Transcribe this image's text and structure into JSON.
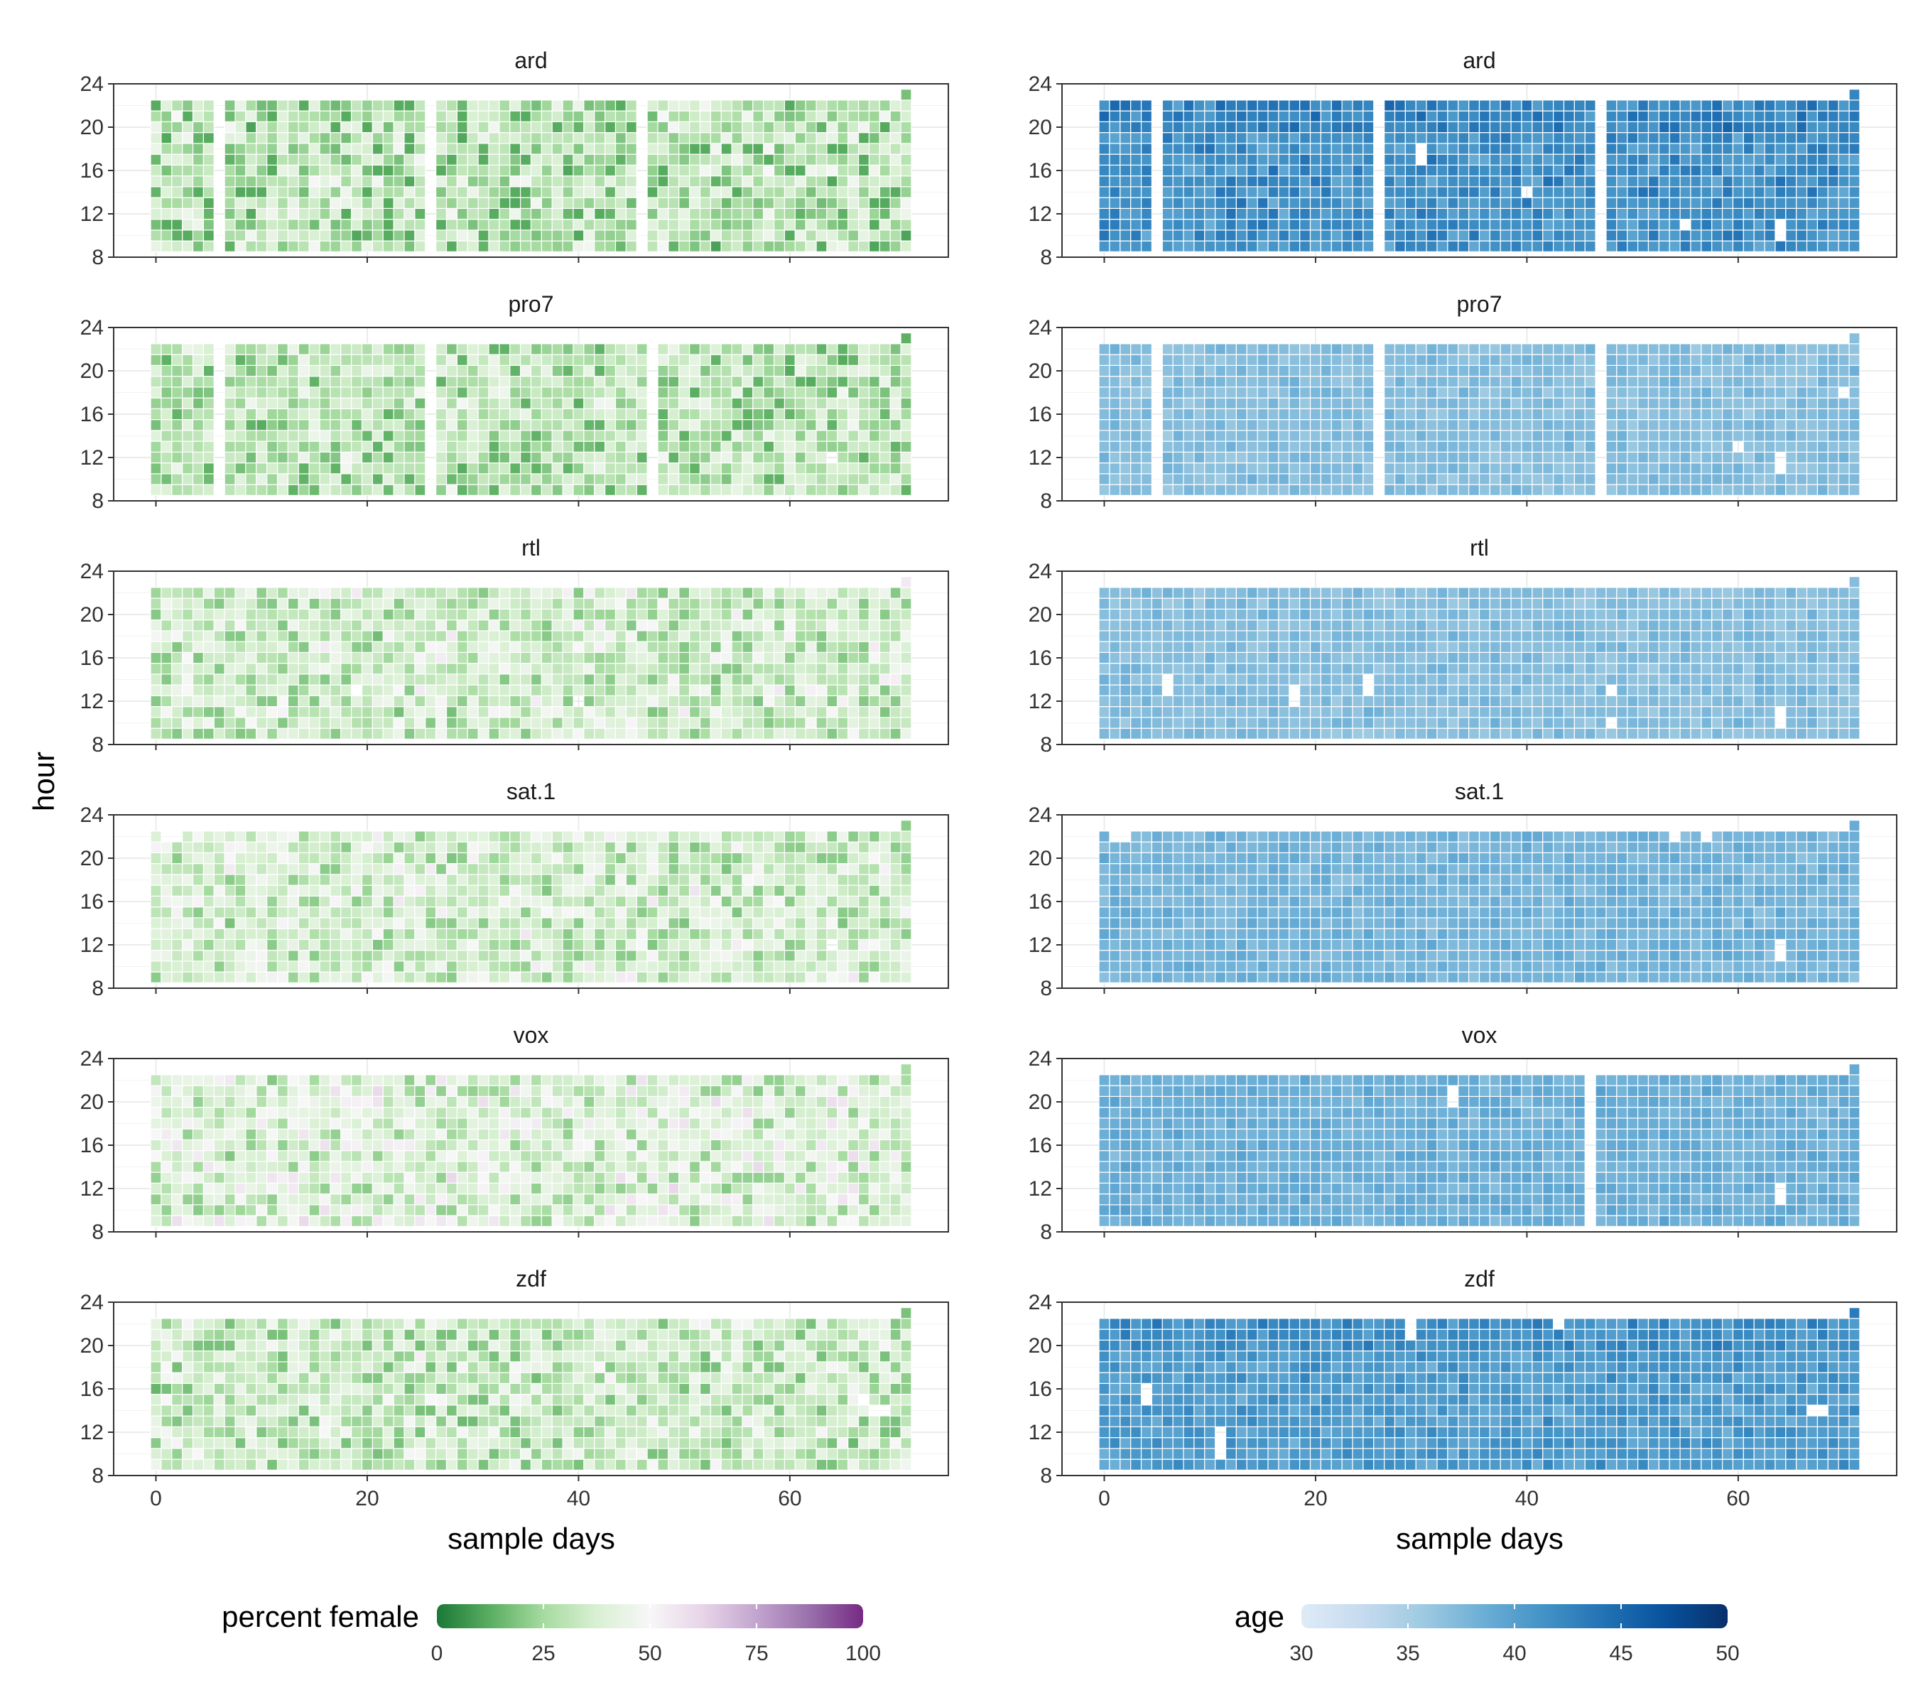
{
  "chart_data": {
    "type": "heatmap",
    "ylabel": "hour",
    "xlabel": "sample days",
    "x_ticks": [
      0,
      20,
      40,
      60
    ],
    "y_ticks": [
      8,
      12,
      16,
      20,
      24
    ],
    "xlim": [
      -4,
      75
    ],
    "ylim": [
      8,
      24
    ],
    "days": 72,
    "hours": [
      9,
      10,
      11,
      12,
      13,
      14,
      15,
      16,
      17,
      18,
      19,
      20,
      21,
      22
    ],
    "panels": [
      {
        "channel": "ard",
        "metric": "percent female",
        "mean": 30,
        "spread": 10,
        "missing_days": [
          6,
          26,
          46
        ],
        "missing_cells": []
      },
      {
        "channel": "pro7",
        "metric": "percent female",
        "mean": 30,
        "spread": 9,
        "missing_days": [
          6,
          26,
          47
        ],
        "missing_cells": [
          [
            64,
            12
          ]
        ]
      },
      {
        "channel": "rtl",
        "metric": "percent female",
        "mean": 36,
        "spread": 9,
        "missing_days": [],
        "missing_cells": [
          [
            19,
            13
          ],
          [
            40,
            12
          ]
        ]
      },
      {
        "channel": "sat.1",
        "metric": "percent female",
        "mean": 37,
        "spread": 9,
        "missing_days": [],
        "missing_cells": [
          [
            1,
            22
          ],
          [
            2,
            22
          ],
          [
            64,
            12
          ]
        ]
      },
      {
        "channel": "vox",
        "metric": "percent female",
        "mean": 40,
        "spread": 10,
        "missing_days": [],
        "missing_cells": []
      },
      {
        "channel": "zdf",
        "metric": "percent female",
        "mean": 34,
        "spread": 9,
        "missing_days": [],
        "missing_cells": [
          [
            68,
            14
          ],
          [
            69,
            14
          ],
          [
            67,
            15
          ]
        ]
      },
      {
        "channel": "ard",
        "metric": "age",
        "mean": 41.5,
        "spread": 1.5,
        "missing_days": [
          5,
          26,
          47
        ],
        "missing_cells": [
          [
            30,
            17
          ],
          [
            30,
            18
          ],
          [
            40,
            14
          ],
          [
            55,
            11
          ],
          [
            64,
            10
          ],
          [
            64,
            11
          ]
        ]
      },
      {
        "channel": "pro7",
        "metric": "age",
        "mean": 37,
        "spread": 0.8,
        "missing_days": [
          5,
          26,
          47
        ],
        "missing_cells": [
          [
            60,
            13
          ],
          [
            64,
            11
          ],
          [
            64,
            12
          ],
          [
            70,
            18
          ]
        ]
      },
      {
        "channel": "rtl",
        "metric": "age",
        "mean": 37,
        "spread": 0.8,
        "missing_days": [],
        "missing_cells": [
          [
            6,
            13
          ],
          [
            6,
            14
          ],
          [
            18,
            12
          ],
          [
            18,
            13
          ],
          [
            25,
            13
          ],
          [
            25,
            14
          ],
          [
            48,
            10
          ],
          [
            48,
            13
          ],
          [
            64,
            10
          ],
          [
            64,
            11
          ]
        ]
      },
      {
        "channel": "sat.1",
        "metric": "age",
        "mean": 38,
        "spread": 0.8,
        "missing_days": [],
        "missing_cells": [
          [
            1,
            22
          ],
          [
            2,
            22
          ],
          [
            54,
            22
          ],
          [
            57,
            22
          ],
          [
            64,
            11
          ],
          [
            64,
            12
          ]
        ]
      },
      {
        "channel": "vox",
        "metric": "age",
        "mean": 38.5,
        "spread": 0.8,
        "missing_days": [
          46
        ],
        "missing_cells": [
          [
            33,
            20
          ],
          [
            33,
            21
          ],
          [
            64,
            11
          ],
          [
            64,
            12
          ]
        ]
      },
      {
        "channel": "zdf",
        "metric": "age",
        "mean": 40.5,
        "spread": 1.2,
        "missing_days": [],
        "missing_cells": [
          [
            4,
            15
          ],
          [
            4,
            16
          ],
          [
            11,
            10
          ],
          [
            11,
            11
          ],
          [
            11,
            12
          ],
          [
            29,
            21
          ],
          [
            29,
            22
          ],
          [
            43,
            22
          ],
          [
            67,
            14
          ],
          [
            68,
            14
          ]
        ]
      }
    ],
    "legends": [
      {
        "title": "percent female",
        "ticks": [
          0,
          25,
          50,
          75,
          100
        ],
        "colors": [
          "#1b7837",
          "#5aae61",
          "#a6dba0",
          "#d9f0d3",
          "#f7f7f7",
          "#e7d4e8",
          "#c2a5cf",
          "#9970ab",
          "#762a83"
        ]
      },
      {
        "title": "age",
        "ticks": [
          30,
          35,
          40,
          45,
          50
        ],
        "colors": [
          "#deebf7",
          "#c6dbef",
          "#9ecae1",
          "#6baed6",
          "#4292c6",
          "#2171b5",
          "#08519c",
          "#08306b"
        ]
      }
    ]
  }
}
